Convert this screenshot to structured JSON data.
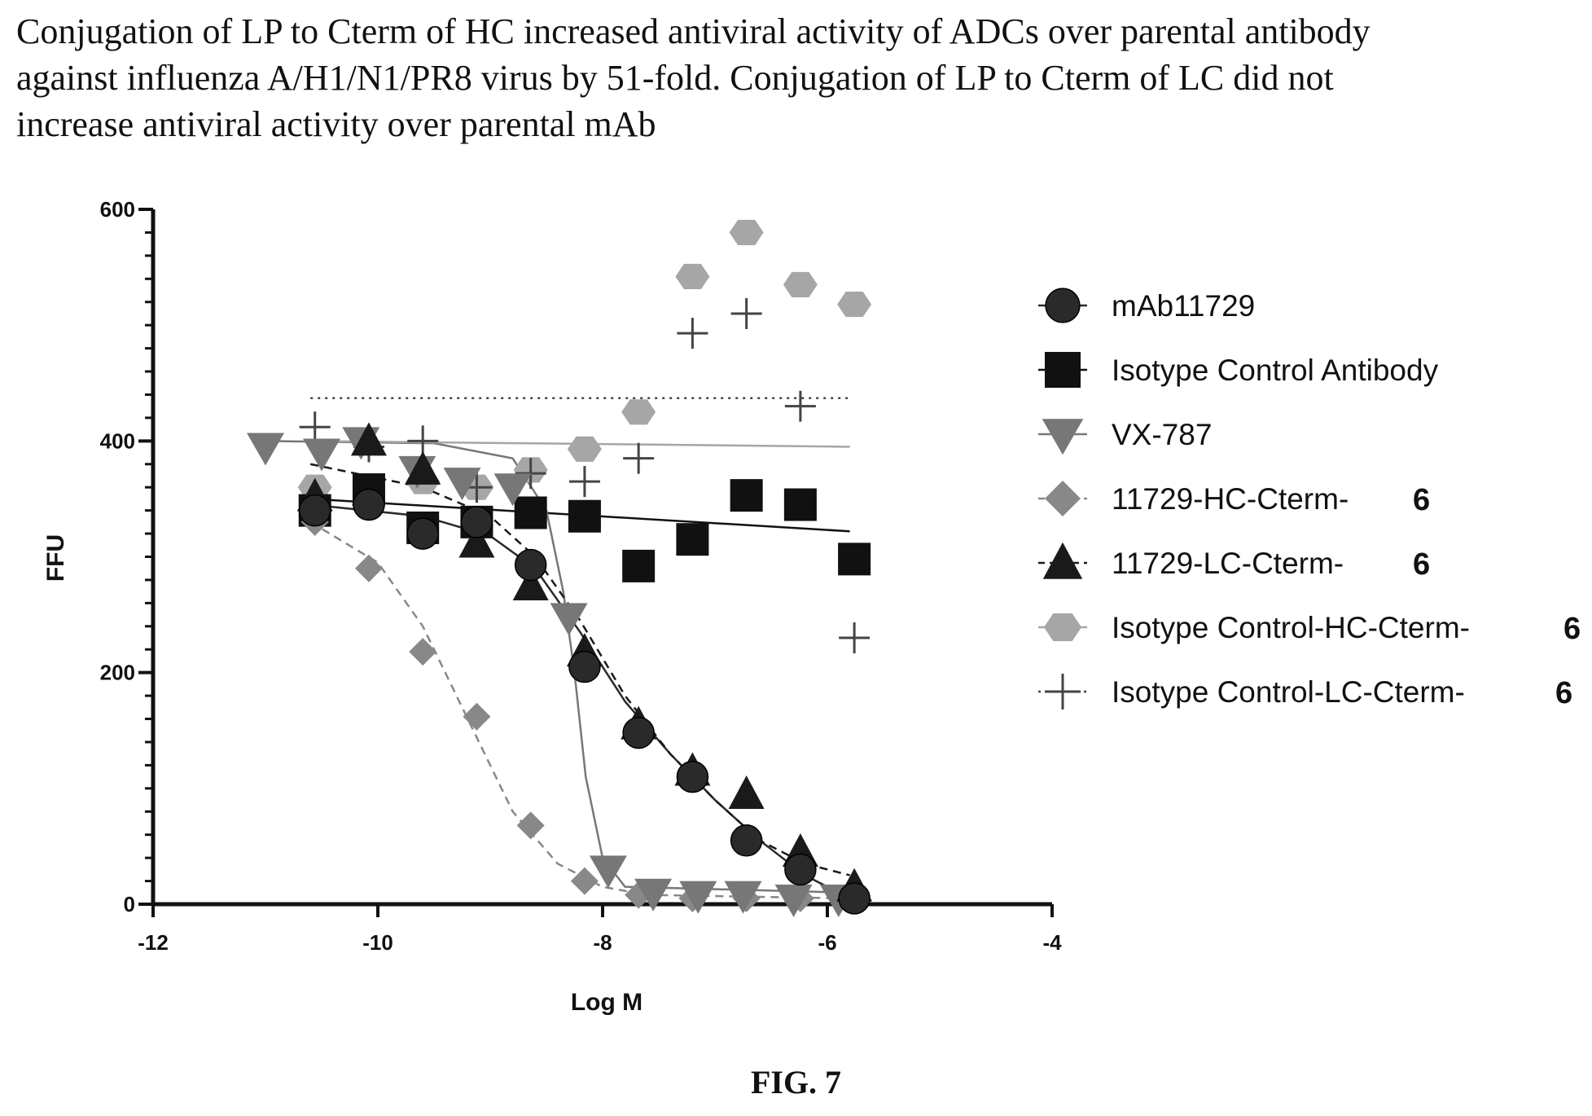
{
  "caption": {
    "lines": [
      "Conjugation of LP to Cterm of HC increased antiviral activity of ADCs over parental antibody",
      "against influenza A/H1/N1/PR8 virus by 51-fold. Conjugation of LP to Cterm of LC did not",
      "increase antiviral activity over parental mAb"
    ]
  },
  "figure_label": "FIG. 7",
  "chart_data": {
    "type": "scatter",
    "xlabel": "Log M",
    "ylabel": "FFU",
    "xlim": [
      -12,
      -4
    ],
    "ylim": [
      0,
      600
    ],
    "x_ticks": [
      -12,
      -10,
      -8,
      -6,
      -4
    ],
    "y_ticks": [
      0,
      200,
      400,
      600
    ],
    "legend_position": "right",
    "series": [
      {
        "name": "mAb11729",
        "marker": "circle",
        "color": "#2a2a2a",
        "x": [
          -10.56,
          -10.08,
          -9.6,
          -9.12,
          -8.64,
          -8.16,
          -7.68,
          -7.2,
          -6.72,
          -6.24,
          -5.76
        ],
        "y": [
          340,
          345,
          320,
          330,
          293,
          205,
          148,
          110,
          55,
          30,
          5
        ],
        "fit": {
          "style": "solid",
          "x": [
            -10.6,
            -9.6,
            -9.0,
            -8.6,
            -8.2,
            -7.8,
            -7.4,
            -7.0,
            -6.6,
            -6.2,
            -5.8
          ],
          "y": [
            345,
            335,
            318,
            290,
            235,
            175,
            130,
            90,
            55,
            25,
            5
          ]
        }
      },
      {
        "name": "Isotype Control Antibody",
        "marker": "square",
        "color": "#111111",
        "x": [
          -10.56,
          -10.08,
          -9.6,
          -9.12,
          -8.64,
          -8.16,
          -7.68,
          -7.2,
          -6.72,
          -6.24,
          -5.76
        ],
        "y": [
          340,
          358,
          325,
          330,
          338,
          335,
          292,
          315,
          353,
          345,
          298
        ],
        "fit": {
          "style": "solid",
          "x": [
            -10.6,
            -5.8
          ],
          "y": [
            350,
            322
          ]
        }
      },
      {
        "name": "VX-787",
        "marker": "triangle-down",
        "color": "#777777",
        "x": [
          -11.0,
          -10.5,
          -10.15,
          -9.65,
          -9.25,
          -8.8,
          -8.3,
          -7.95,
          -7.55,
          -7.15,
          -6.75,
          -6.3,
          -5.9
        ],
        "y": [
          395,
          390,
          400,
          375,
          365,
          360,
          248,
          30,
          10,
          8,
          8,
          5,
          5
        ],
        "fit": {
          "style": "solid",
          "x": [
            -11.0,
            -9.5,
            -8.8,
            -8.5,
            -8.35,
            -8.25,
            -8.15,
            -8.0,
            -7.8,
            -5.8
          ],
          "y": [
            400,
            398,
            385,
            340,
            270,
            200,
            110,
            40,
            15,
            10
          ]
        }
      },
      {
        "name": "11729-HC-Cterm-",
        "name_suffix": "6",
        "marker": "diamond",
        "color": "#888888",
        "x": [
          -10.56,
          -10.08,
          -9.6,
          -9.12,
          -8.64,
          -8.16,
          -7.68,
          -7.2,
          -6.72,
          -6.24,
          -5.76
        ],
        "y": [
          330,
          290,
          218,
          162,
          68,
          20,
          8,
          5,
          5,
          5,
          5
        ],
        "fit": {
          "style": "dashed",
          "x": [
            -10.6,
            -10.0,
            -9.6,
            -9.2,
            -8.8,
            -8.4,
            -8.0,
            -7.6,
            -5.8
          ],
          "y": [
            330,
            295,
            240,
            160,
            80,
            35,
            15,
            8,
            5
          ]
        }
      },
      {
        "name": "11729-LC-Cterm-",
        "name_suffix": "6",
        "marker": "triangle-up",
        "color": "#1a1a1a",
        "x": [
          -10.56,
          -10.08,
          -9.6,
          -9.12,
          -8.64,
          -8.16,
          -7.68,
          -7.2,
          -6.72,
          -6.24,
          -5.76
        ],
        "y": [
          352,
          400,
          375,
          312,
          275,
          218,
          155,
          115,
          95,
          45,
          15
        ],
        "fit": {
          "style": "dashed",
          "x": [
            -10.6,
            -9.6,
            -9.0,
            -8.6,
            -8.2,
            -7.8,
            -7.4,
            -7.0,
            -6.6,
            -6.2,
            -5.8
          ],
          "y": [
            380,
            360,
            335,
            300,
            245,
            180,
            130,
            90,
            55,
            35,
            25
          ]
        }
      },
      {
        "name": "Isotype Control-HC-Cterm-",
        "name_suffix": "6",
        "marker": "hexagon",
        "color": "#a6a6a6",
        "x": [
          -10.56,
          -10.08,
          -9.6,
          -9.12,
          -8.64,
          -8.16,
          -7.68,
          -7.2,
          -6.72,
          -6.24,
          -5.76
        ],
        "y": [
          360,
          345,
          365,
          360,
          375,
          393,
          425,
          542,
          580,
          535,
          518
        ],
        "fit": {
          "style": "solid",
          "x": [
            -10.6,
            -5.8
          ],
          "y": [
            400,
            395
          ]
        }
      },
      {
        "name": "Isotype Control-LC-Cterm-",
        "name_suffix": "6",
        "marker": "plus",
        "color": "#444444",
        "x": [
          -10.56,
          -10.08,
          -9.6,
          -9.12,
          -8.64,
          -8.16,
          -7.68,
          -7.2,
          -6.72,
          -6.24,
          -5.76
        ],
        "y": [
          412,
          395,
          400,
          360,
          372,
          365,
          385,
          493,
          510,
          430,
          230
        ],
        "fit": {
          "style": "dotted",
          "x": [
            -10.6,
            -5.8
          ],
          "y": [
            437,
            437
          ]
        }
      }
    ]
  }
}
